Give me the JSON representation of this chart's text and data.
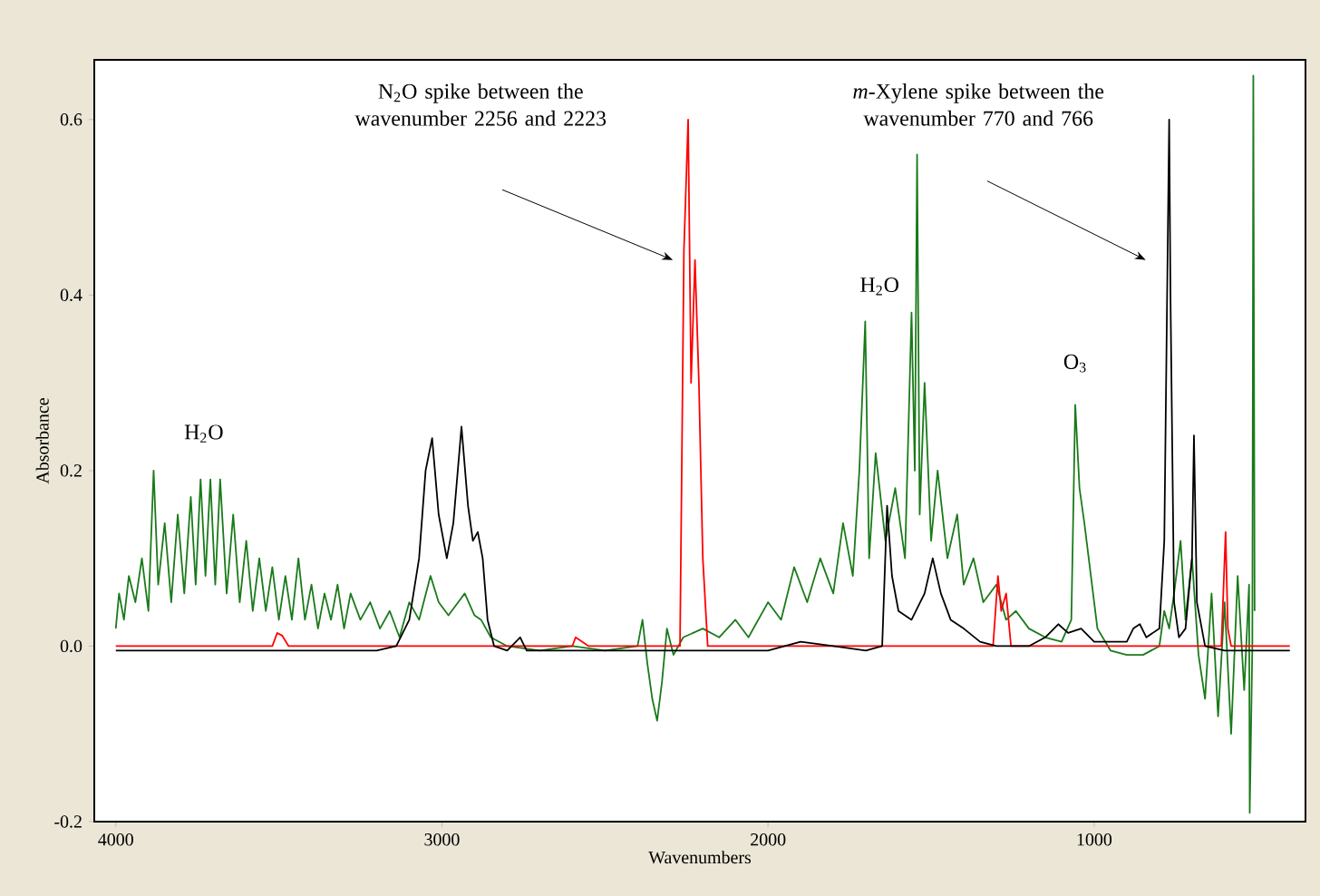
{
  "chart_data": {
    "type": "line",
    "xlabel": "Wavenumbers",
    "ylabel": "Absorbance",
    "xlim": [
      4066,
      352
    ],
    "ylim": [
      -0.2,
      0.668
    ],
    "xticks": [
      4000,
      3000,
      2000,
      1000
    ],
    "yticks": [
      -0.2,
      {
        "value": 0,
        "label": "0.0"
      },
      0.2,
      0.4,
      0.6
    ],
    "annotations": [
      "N$_{2}$O spike between the wavenumber 2256 and 2223",
      "*m*-Xylene spike between the wavenumber 770 and 766",
      {
        "text": "H$_{2}$O",
        "x": 3730,
        "y": 0.2
      },
      "H$_{2}$O",
      {
        "text": "O$_{3}$",
        "x": 1058,
        "y": 0.28
      }
    ],
    "series": [
      {
        "color": "#1a7a1a",
        "x": [
          4000,
          3990,
          3975,
          3960,
          3940,
          3920,
          3900,
          3884,
          3870,
          3850,
          3830,
          3810,
          3790,
          3770,
          3755,
          3740,
          3725,
          3710,
          3695,
          3680,
          3660,
          3640,
          3620,
          3600,
          3580,
          3560,
          3540,
          3520,
          3500,
          3480,
          3460,
          3440,
          3420,
          3400,
          3380,
          3360,
          3340,
          3320,
          3300,
          3280,
          3250,
          3220,
          3190,
          3160,
          3130,
          3100,
          3070,
          3035,
          3010,
          2980,
          2950,
          2930,
          2900,
          2880,
          2850,
          2800,
          2700,
          2600,
          2500,
          2400,
          2385,
          2370,
          2355,
          2340,
          2325,
          2310,
          2290,
          2260,
          2200,
          2150,
          2100,
          2060,
          2000,
          1960,
          1920,
          1880,
          1840,
          1800,
          1770,
          1740,
          1720,
          1702,
          1690,
          1670,
          1640,
          1610,
          1580,
          1560,
          1550,
          1543,
          1535,
          1520,
          1500,
          1480,
          1450,
          1420,
          1400,
          1370,
          1340,
          1300,
          1270,
          1240,
          1200,
          1150,
          1100,
          1070,
          1058,
          1045,
          1030,
          1010,
          990,
          950,
          900,
          850,
          800,
          785,
          770,
          755,
          735,
          720,
          700,
          680,
          660,
          640,
          620,
          600,
          580,
          560,
          540,
          525,
          523,
          515,
          512,
          508
        ],
        "values": [
          0.02,
          0.06,
          0.03,
          0.08,
          0.05,
          0.1,
          0.04,
          0.2,
          0.07,
          0.14,
          0.05,
          0.15,
          0.06,
          0.17,
          0.07,
          0.19,
          0.08,
          0.19,
          0.07,
          0.19,
          0.06,
          0.15,
          0.05,
          0.12,
          0.04,
          0.1,
          0.04,
          0.09,
          0.03,
          0.08,
          0.03,
          0.1,
          0.03,
          0.07,
          0.02,
          0.06,
          0.03,
          0.07,
          0.02,
          0.06,
          0.03,
          0.05,
          0.02,
          0.04,
          0.01,
          0.05,
          0.03,
          0.08,
          0.05,
          0.035,
          0.05,
          0.06,
          0.035,
          0.03,
          0.01,
          0.0,
          -0.005,
          0.0,
          -0.005,
          0.0,
          0.03,
          -0.02,
          -0.06,
          -0.085,
          -0.04,
          0.02,
          -0.01,
          0.01,
          0.02,
          0.01,
          0.03,
          0.01,
          0.05,
          0.03,
          0.09,
          0.05,
          0.1,
          0.06,
          0.14,
          0.08,
          0.2,
          0.37,
          0.1,
          0.22,
          0.12,
          0.18,
          0.1,
          0.38,
          0.2,
          0.56,
          0.15,
          0.3,
          0.12,
          0.2,
          0.1,
          0.15,
          0.07,
          0.1,
          0.05,
          0.07,
          0.03,
          0.04,
          0.02,
          0.01,
          0.005,
          0.03,
          0.275,
          0.18,
          0.14,
          0.08,
          0.02,
          -0.005,
          -0.01,
          -0.01,
          0.0,
          0.04,
          0.02,
          0.06,
          0.12,
          0.03,
          0.1,
          -0.01,
          -0.06,
          0.06,
          -0.08,
          0.05,
          -0.1,
          0.08,
          -0.05,
          0.07,
          -0.19,
          0.0,
          0.65,
          0.04
        ]
      },
      {
        "color": "#ff0000",
        "x": [
          4000,
          3520,
          3505,
          3490,
          3470,
          2600,
          2590,
          2570,
          2550,
          2270,
          2258,
          2245,
          2236,
          2224,
          2212,
          2200,
          2185,
          1310,
          1295,
          1285,
          1270,
          1255,
          610,
          597,
          590,
          580,
          400
        ],
        "values": [
          0.0,
          0.0,
          0.015,
          0.012,
          0.0,
          0.0,
          0.01,
          0.005,
          0.0,
          0.0,
          0.45,
          0.6,
          0.3,
          0.44,
          0.3,
          0.1,
          0.0,
          0.0,
          0.08,
          0.04,
          0.06,
          0.0,
          0.0,
          0.13,
          0.02,
          0.0,
          0.0
        ]
      },
      {
        "color": "#000000",
        "x": [
          4000,
          3200,
          3140,
          3100,
          3070,
          3050,
          3030,
          3010,
          2985,
          2965,
          2940,
          2920,
          2905,
          2890,
          2875,
          2860,
          2840,
          2800,
          2760,
          2740,
          2000,
          1900,
          1800,
          1700,
          1650,
          1635,
          1620,
          1600,
          1560,
          1520,
          1495,
          1470,
          1440,
          1400,
          1350,
          1300,
          1200,
          1150,
          1110,
          1080,
          1040,
          1000,
          900,
          880,
          860,
          840,
          800,
          785,
          770,
          766,
          755,
          740,
          720,
          700,
          694,
          685,
          660,
          600,
          400
        ],
        "values": [
          -0.005,
          -0.005,
          0.0,
          0.03,
          0.1,
          0.2,
          0.237,
          0.15,
          0.1,
          0.14,
          0.25,
          0.16,
          0.12,
          0.13,
          0.1,
          0.03,
          0.0,
          -0.005,
          0.01,
          -0.005,
          -0.005,
          0.005,
          0.0,
          -0.005,
          0.0,
          0.16,
          0.08,
          0.04,
          0.03,
          0.06,
          0.1,
          0.06,
          0.03,
          0.02,
          0.005,
          0.0,
          0.0,
          0.01,
          0.025,
          0.015,
          0.02,
          0.005,
          0.005,
          0.02,
          0.025,
          0.01,
          0.02,
          0.12,
          0.6,
          0.4,
          0.05,
          0.01,
          0.02,
          0.1,
          0.24,
          0.05,
          0.0,
          -0.005,
          -0.005
        ]
      }
    ]
  }
}
